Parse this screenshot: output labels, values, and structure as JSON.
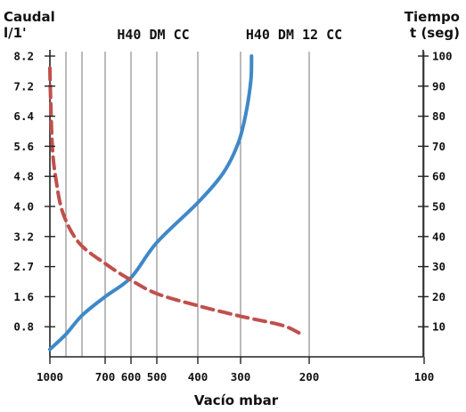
{
  "chart_data": {
    "type": "line",
    "left_axis": {
      "title_line1": "Caudal",
      "title_line2": "l/1'",
      "ticks": [
        "0.8",
        "1.6",
        "2.7",
        "3.2",
        "4.0",
        "4.8",
        "5.6",
        "6.4",
        "7.2",
        "8.2"
      ]
    },
    "right_axis": {
      "title_line1": "Tiempo",
      "title_line2": "t (seg)",
      "ticks": [
        "10",
        "20",
        "30",
        "40",
        "50",
        "60",
        "70",
        "80",
        "90",
        "100"
      ],
      "range": [
        0,
        100
      ]
    },
    "x_axis": {
      "title": "Vacío mbar",
      "ticks": [
        {
          "label": "1000",
          "value": 1000
        },
        {
          "label": "700",
          "value": 700
        },
        {
          "label": "600",
          "value": 600
        },
        {
          "label": "500",
          "value": 500
        },
        {
          "label": "400",
          "value": 400
        },
        {
          "label": "300",
          "value": 300
        },
        {
          "label": "200",
          "value": 200
        },
        {
          "label": "100",
          "value": 100
        }
      ],
      "vertical_gridlines": [
        1000,
        900,
        800,
        700,
        600,
        500,
        400,
        300,
        200,
        100
      ]
    },
    "model_labels": [
      "H40 DM CC",
      "H40 DM 12 CC"
    ],
    "series": [
      {
        "style": "solid",
        "color": "#3f88c8",
        "axis": "left",
        "points": [
          [
            1000,
            0.2
          ],
          [
            900,
            0.6
          ],
          [
            800,
            1.1
          ],
          [
            700,
            1.6
          ],
          [
            600,
            2.3
          ],
          [
            500,
            3.1
          ],
          [
            400,
            4.1
          ],
          [
            340,
            4.9
          ],
          [
            305,
            5.7
          ],
          [
            292,
            6.5
          ],
          [
            285,
            7.4
          ],
          [
            284,
            8.2
          ]
        ]
      },
      {
        "style": "dashed",
        "color": "#c0504d",
        "axis": "right",
        "points": [
          [
            1000,
            96
          ],
          [
            995,
            85
          ],
          [
            985,
            70
          ],
          [
            965,
            60
          ],
          [
            920,
            48
          ],
          [
            820,
            38
          ],
          [
            700,
            31
          ],
          [
            600,
            25.5
          ],
          [
            500,
            21
          ],
          [
            400,
            17
          ],
          [
            300,
            13.5
          ],
          [
            240,
            10.5
          ],
          [
            215,
            8
          ]
        ]
      }
    ],
    "grid": true
  }
}
